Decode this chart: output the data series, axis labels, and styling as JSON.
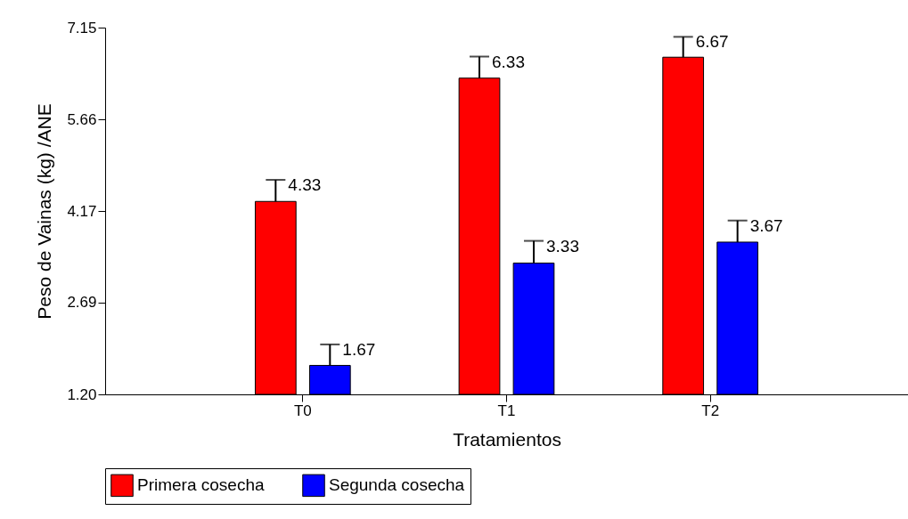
{
  "chart_data": {
    "type": "bar",
    "xlabel": "Tratamientos",
    "ylabel": "Peso de Vainas (kg) /ANE",
    "categories": [
      "T0",
      "T1",
      "T2"
    ],
    "series": [
      {
        "name": "Primera cosecha",
        "color": "#ff0000",
        "values": [
          4.33,
          6.33,
          6.67
        ],
        "errors": [
          [
            4.33,
            4.68
          ],
          [
            6.33,
            6.68
          ],
          [
            6.67,
            7.0
          ]
        ]
      },
      {
        "name": "Segunda cosecha",
        "color": "#0000ff",
        "values": [
          1.67,
          3.33,
          3.67
        ],
        "errors": [
          [
            1.67,
            2.01
          ],
          [
            3.33,
            3.69
          ],
          [
            3.67,
            4.02
          ]
        ]
      }
    ],
    "ylim": [
      1.2,
      7.15
    ],
    "yticks": [
      {
        "value": 1.2,
        "label": "1.20"
      },
      {
        "value": 2.69,
        "label": "2.69"
      },
      {
        "value": 4.17,
        "label": "4.17"
      },
      {
        "value": 5.66,
        "label": "5.66"
      },
      {
        "value": 7.15,
        "label": "7.15"
      }
    ],
    "data_labels": true,
    "grid": false,
    "legend": "bottom"
  }
}
